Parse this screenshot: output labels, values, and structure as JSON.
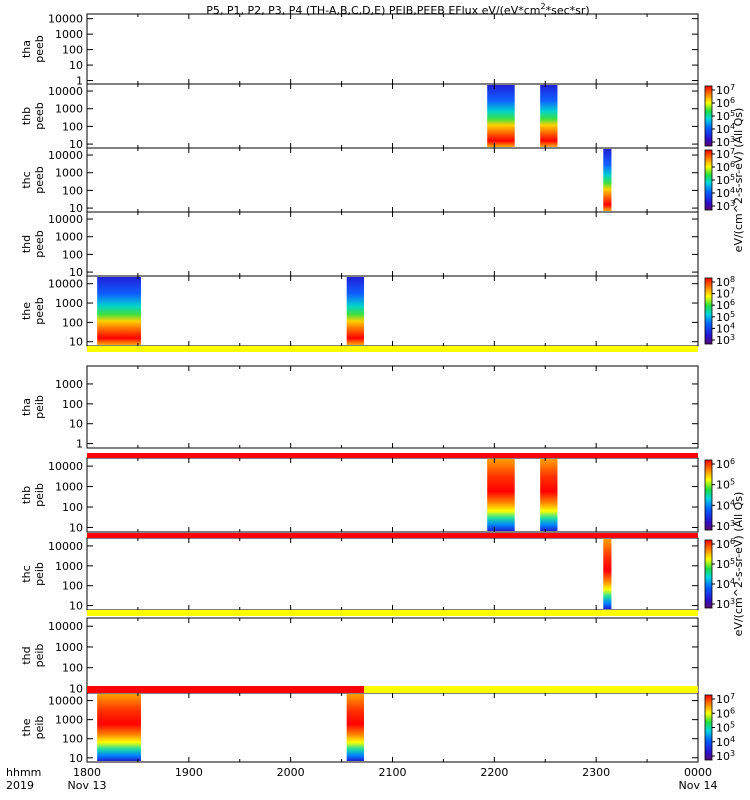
{
  "title": "P5, P1, P2, P3, P4 (TH-A,B,C,D,E) PEIB,PEEB EFlux eV/(eV*cm",
  "title_sup": "2",
  "title_tail": "*sec*sr)",
  "time_axis": {
    "row_label": "hhmm",
    "year_label": "2019",
    "ticks": [
      {
        "hour": 0,
        "label": "1800",
        "date": "Nov 13"
      },
      {
        "hour": 1,
        "label": "1900",
        "date": ""
      },
      {
        "hour": 2,
        "label": "2000",
        "date": ""
      },
      {
        "hour": 3,
        "label": "2100",
        "date": ""
      },
      {
        "hour": 4,
        "label": "2200",
        "date": ""
      },
      {
        "hour": 5,
        "label": "2300",
        "date": ""
      },
      {
        "hour": 6,
        "label": "0000",
        "date": "Nov 14"
      }
    ]
  },
  "colorbar_titles": {
    "peeb": "eV/(cm^2-s-sr-eV) (All Qs)",
    "peib": "eV/(cm^2-s-sr-eV) (All Qs)"
  },
  "colors": {
    "flag_red": "#ff0000",
    "flag_yellow": "#ffff00",
    "axis": "#000000"
  },
  "chart_data": {
    "type": "heatmap",
    "x_unit": "hours since 18:00 UT 2019-11-13",
    "x_range": [
      0,
      6
    ],
    "y_scale": "log",
    "panels": [
      {
        "probe": "tha",
        "product": "peeb",
        "ylabel": [
          "tha",
          "peeb"
        ],
        "y_ticks": [
          "10000",
          "1000",
          "100",
          "10",
          "1"
        ],
        "y_range": [
          0.6,
          20000
        ],
        "colorbar": null,
        "data_spans": []
      },
      {
        "probe": "thb",
        "product": "peeb",
        "ylabel": [
          "thb",
          "peeb"
        ],
        "y_ticks": [
          "10000",
          "1000",
          "100",
          "10"
        ],
        "y_range": [
          6,
          25000
        ],
        "colorbar": {
          "ticks": [
            "10^7",
            "10^6",
            "10^5",
            "10^4",
            "10^3"
          ]
        },
        "data_spans": [
          [
            3.93,
            4.2
          ],
          [
            4.45,
            4.62
          ]
        ]
      },
      {
        "probe": "thc",
        "product": "peeb",
        "ylabel": [
          "thc",
          "peeb"
        ],
        "y_ticks": [
          "10000",
          "1000",
          "100",
          "10"
        ],
        "y_range": [
          6,
          25000
        ],
        "colorbar": {
          "ticks": [
            "10^7",
            "10^6",
            "10^5",
            "10^4",
            "10^3"
          ]
        },
        "data_spans": [
          [
            5.07,
            5.15
          ]
        ]
      },
      {
        "probe": "thd",
        "product": "peeb",
        "ylabel": [
          "thd",
          "peeb"
        ],
        "y_ticks": [
          "10000",
          "1000",
          "100",
          "10"
        ],
        "y_range": [
          6,
          25000
        ],
        "colorbar": null,
        "data_spans": []
      },
      {
        "probe": "the",
        "product": "peeb",
        "ylabel": [
          "the",
          "peeb"
        ],
        "y_ticks": [
          "10000",
          "1000",
          "100",
          "10"
        ],
        "y_range": [
          6,
          25000
        ],
        "colorbar": {
          "ticks": [
            "10^8",
            "10^7",
            "10^6",
            "10^5",
            "10^4",
            "10^3"
          ]
        },
        "data_spans": [
          [
            0.1,
            0.53
          ],
          [
            2.55,
            2.72
          ]
        ]
      },
      {
        "probe": "tha",
        "product": "peib",
        "ylabel": [
          "tha",
          "peib"
        ],
        "y_ticks": [
          "1000",
          "100",
          "10",
          "1"
        ],
        "y_range": [
          0.6,
          8000
        ],
        "colorbar": null,
        "data_spans": []
      },
      {
        "probe": "thb",
        "product": "peib",
        "ylabel": [
          "thb",
          "peib"
        ],
        "y_ticks": [
          "10000",
          "1000",
          "100",
          "10"
        ],
        "y_range": [
          6,
          25000
        ],
        "colorbar": {
          "ticks": [
            "10^6",
            "10^5",
            "10^4",
            "10^3"
          ]
        },
        "data_spans": [
          [
            3.93,
            4.2
          ],
          [
            4.45,
            4.62
          ]
        ]
      },
      {
        "probe": "thc",
        "product": "peib",
        "ylabel": [
          "thc",
          "peib"
        ],
        "y_ticks": [
          "10000",
          "1000",
          "100",
          "10"
        ],
        "y_range": [
          6,
          25000
        ],
        "colorbar": {
          "ticks": [
            "10^6",
            "10^5",
            "10^4",
            "10^3"
          ]
        },
        "data_spans": [
          [
            5.07,
            5.15
          ]
        ]
      },
      {
        "probe": "thd",
        "product": "peib",
        "ylabel": [
          "thd",
          "peib"
        ],
        "y_ticks": [
          "10000",
          "1000",
          "100",
          "10"
        ],
        "y_range": [
          6,
          25000
        ],
        "colorbar": null,
        "data_spans": []
      },
      {
        "probe": "the",
        "product": "peib",
        "ylabel": [
          "the",
          "peib"
        ],
        "y_ticks": [
          "10000",
          "1000",
          "100",
          "10"
        ],
        "y_range": [
          6,
          25000
        ],
        "colorbar": {
          "ticks": [
            "10^7",
            "10^6",
            "10^5",
            "10^4",
            "10^3"
          ]
        },
        "data_spans": [
          [
            0.1,
            0.53
          ],
          [
            2.55,
            2.72
          ]
        ]
      }
    ],
    "flag_bars": [
      {
        "after_panel": 4,
        "segments": [
          {
            "from": 0,
            "to": 6,
            "color": "yellow"
          }
        ]
      },
      {
        "after_panel": 5,
        "segments": [
          {
            "from": 0,
            "to": 6,
            "color": "red"
          }
        ]
      },
      {
        "after_panel": 6,
        "segments": [
          {
            "from": 0,
            "to": 6,
            "color": "red"
          }
        ]
      },
      {
        "after_panel": 7,
        "segments": [
          {
            "from": 0,
            "to": 6,
            "color": "yellow"
          }
        ]
      },
      {
        "after_panel": 8,
        "segments": [
          {
            "from": 0,
            "to": 2.72,
            "color": "red"
          },
          {
            "from": 2.72,
            "to": 6,
            "color": "yellow"
          }
        ]
      }
    ]
  }
}
